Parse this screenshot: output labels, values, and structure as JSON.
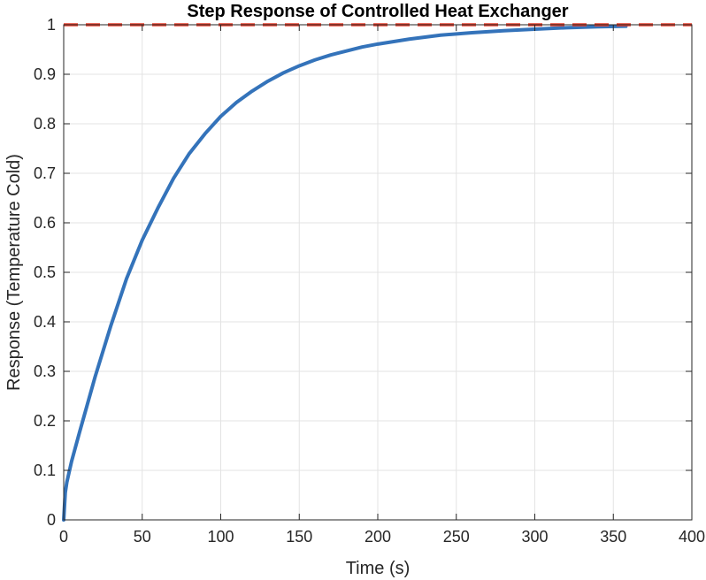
{
  "chart_data": {
    "type": "line",
    "title": "Step Response of Controlled Heat Exchanger",
    "xlabel": "Time (s)",
    "ylabel": "Response (Temperature Cold)",
    "xlim": [
      0,
      400
    ],
    "ylim": [
      0,
      1
    ],
    "xticks": [
      "0",
      "50",
      "100",
      "150",
      "200",
      "250",
      "300",
      "350",
      "400"
    ],
    "yticks": [
      "0",
      "0.1",
      "0.2",
      "0.3",
      "0.4",
      "0.5",
      "0.6",
      "0.7",
      "0.8",
      "0.9",
      "1"
    ],
    "grid": true,
    "series": [
      {
        "color": "#3473BA",
        "style": "solid",
        "x": [
          0,
          1,
          2,
          5,
          10,
          20,
          30,
          40,
          50,
          60,
          70,
          80,
          90,
          100,
          110,
          120,
          130,
          140,
          150,
          160,
          170,
          180,
          190,
          200,
          220,
          240,
          260,
          280,
          300,
          320,
          340,
          358
        ],
        "y": [
          0,
          0.055,
          0.076,
          0.118,
          0.176,
          0.289,
          0.392,
          0.487,
          0.565,
          0.63,
          0.69,
          0.74,
          0.78,
          0.815,
          0.843,
          0.866,
          0.886,
          0.903,
          0.917,
          0.929,
          0.939,
          0.947,
          0.955,
          0.961,
          0.971,
          0.979,
          0.984,
          0.988,
          0.991,
          0.994,
          0.996,
          0.997
        ]
      },
      {
        "color": "#E8402F",
        "style": "dashed",
        "x": [
          0,
          400
        ],
        "y": [
          1,
          1
        ]
      }
    ]
  }
}
